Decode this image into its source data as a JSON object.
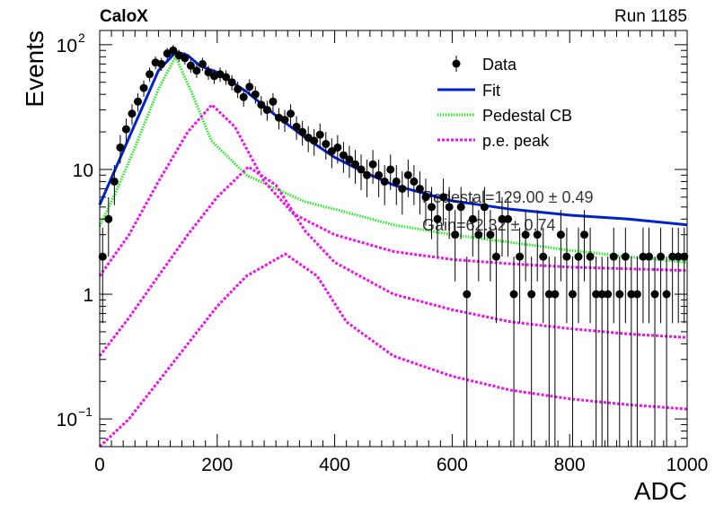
{
  "header": {
    "left": "CaloX",
    "right": "Run 1185"
  },
  "overlay_text": [
    "Pedestal=129.00 ± 0.49",
    "Gain=62.32 ± 0.74"
  ],
  "chart_data": {
    "type": "scatter",
    "title": "",
    "xlabel": "ADC",
    "ylabel": "Events",
    "xlim": [
      0,
      1000
    ],
    "ylim": [
      0.06,
      130
    ],
    "yscale": "log",
    "grid": false,
    "legend_position": "top-right",
    "x_ticks": [
      {
        "value": 0,
        "label": "0"
      },
      {
        "value": 200,
        "label": "200"
      },
      {
        "value": 400,
        "label": "400"
      },
      {
        "value": 600,
        "label": "600"
      },
      {
        "value": 800,
        "label": "800"
      },
      {
        "value": 1000,
        "label": "1000"
      }
    ],
    "y_ticks": [
      {
        "value": 0.1,
        "base": "10",
        "exp": "−1"
      },
      {
        "value": 1,
        "base": "1",
        "exp": ""
      },
      {
        "value": 10,
        "base": "10",
        "exp": ""
      },
      {
        "value": 100,
        "base": "10",
        "exp": "2"
      }
    ],
    "legend": [
      {
        "label": "Data",
        "style": "marker",
        "color": "#000000"
      },
      {
        "label": "Fit",
        "style": "solid",
        "color": "#0022cc"
      },
      {
        "label": "Pedestal CB",
        "style": "dotted",
        "color": "#22ee22"
      },
      {
        "label": "p.e. peak",
        "style": "dashed",
        "color": "#ee11ee"
      }
    ],
    "series": [
      {
        "name": "Data",
        "kind": "points",
        "color": "#000000",
        "x": [
          5,
          15,
          25,
          35,
          45,
          55,
          65,
          75,
          85,
          95,
          105,
          115,
          125,
          135,
          145,
          155,
          165,
          175,
          185,
          195,
          205,
          215,
          225,
          235,
          245,
          255,
          265,
          275,
          285,
          295,
          305,
          315,
          325,
          335,
          345,
          355,
          365,
          375,
          385,
          395,
          405,
          415,
          425,
          435,
          445,
          455,
          465,
          475,
          485,
          495,
          505,
          515,
          525,
          535,
          545,
          555,
          565,
          575,
          585,
          595,
          605,
          615,
          625,
          635,
          645,
          655,
          665,
          675,
          685,
          695,
          705,
          715,
          725,
          735,
          745,
          755,
          765,
          775,
          785,
          795,
          805,
          815,
          825,
          835,
          845,
          855,
          865,
          875,
          885,
          895,
          905,
          915,
          925,
          935,
          945,
          955,
          965,
          975,
          985,
          995
        ],
        "y": [
          2,
          4,
          8,
          15,
          21,
          28,
          35,
          45,
          58,
          72,
          70,
          85,
          90,
          82,
          78,
          68,
          62,
          70,
          60,
          56,
          58,
          55,
          50,
          44,
          38,
          46,
          40,
          33,
          30,
          35,
          26,
          25,
          28,
          22,
          20,
          18,
          17,
          19,
          16,
          14,
          15,
          13,
          12,
          11,
          10,
          9,
          11,
          9,
          8,
          10,
          8,
          7,
          9,
          8,
          7,
          6,
          5,
          4,
          6,
          5,
          3,
          5,
          1,
          4,
          3,
          5,
          3,
          2,
          4,
          4,
          1,
          2,
          3,
          1,
          3,
          2,
          1,
          1,
          3,
          2,
          1,
          2,
          3,
          2,
          1,
          1,
          1,
          2,
          1,
          2,
          1,
          1,
          2,
          2,
          1,
          2,
          1,
          2,
          2,
          2
        ]
      },
      {
        "name": "Fit",
        "kind": "line",
        "color": "#0022cc",
        "x": [
          0,
          50,
          100,
          130,
          150,
          170,
          200,
          250,
          300,
          350,
          400,
          450,
          500,
          600,
          700,
          800,
          900,
          1000
        ],
        "y": [
          5.2,
          18,
          62,
          88,
          82,
          68,
          60,
          42,
          27,
          18,
          12.5,
          9.5,
          7.5,
          5.6,
          4.8,
          4.3,
          4,
          3.6
        ]
      },
      {
        "name": "Pedestal CB",
        "kind": "line",
        "color": "#22ee22",
        "x": [
          0,
          30,
          60,
          100,
          129,
          158,
          190,
          250,
          300,
          350,
          400,
          500,
          600,
          700,
          800,
          900,
          1000
        ],
        "y": [
          3.5,
          7,
          15,
          44,
          80,
          40,
          17,
          9,
          7,
          5.5,
          4.8,
          3.6,
          3,
          2.6,
          2.25,
          2,
          1.8
        ]
      },
      {
        "name": "p.e. peak 1",
        "kind": "line",
        "color": "#ee11ee",
        "x": [
          0,
          50,
          100,
          150,
          191,
          230,
          280,
          330,
          400,
          500,
          600,
          700,
          800,
          900,
          1000
        ],
        "y": [
          1.4,
          3,
          8,
          20,
          33,
          22,
          8,
          4.4,
          3,
          2.2,
          1.9,
          1.75,
          1.65,
          1.6,
          1.55
        ]
      },
      {
        "name": "p.e. peak 2",
        "kind": "line",
        "color": "#ee11ee",
        "x": [
          0,
          50,
          100,
          150,
          200,
          253,
          300,
          350,
          400,
          500,
          600,
          700,
          800,
          900,
          1000
        ],
        "y": [
          0.32,
          0.65,
          1.4,
          3,
          6,
          10.5,
          7.5,
          3.2,
          1.8,
          1,
          0.75,
          0.6,
          0.53,
          0.48,
          0.45
        ]
      },
      {
        "name": "p.e. peak 3",
        "kind": "line",
        "color": "#ee11ee",
        "x": [
          0,
          50,
          100,
          150,
          200,
          250,
          316,
          370,
          420,
          500,
          600,
          700,
          800,
          900,
          1000
        ],
        "y": [
          0.055,
          0.1,
          0.2,
          0.4,
          0.8,
          1.4,
          2.1,
          1.4,
          0.6,
          0.32,
          0.22,
          0.17,
          0.145,
          0.13,
          0.12
        ]
      }
    ]
  }
}
